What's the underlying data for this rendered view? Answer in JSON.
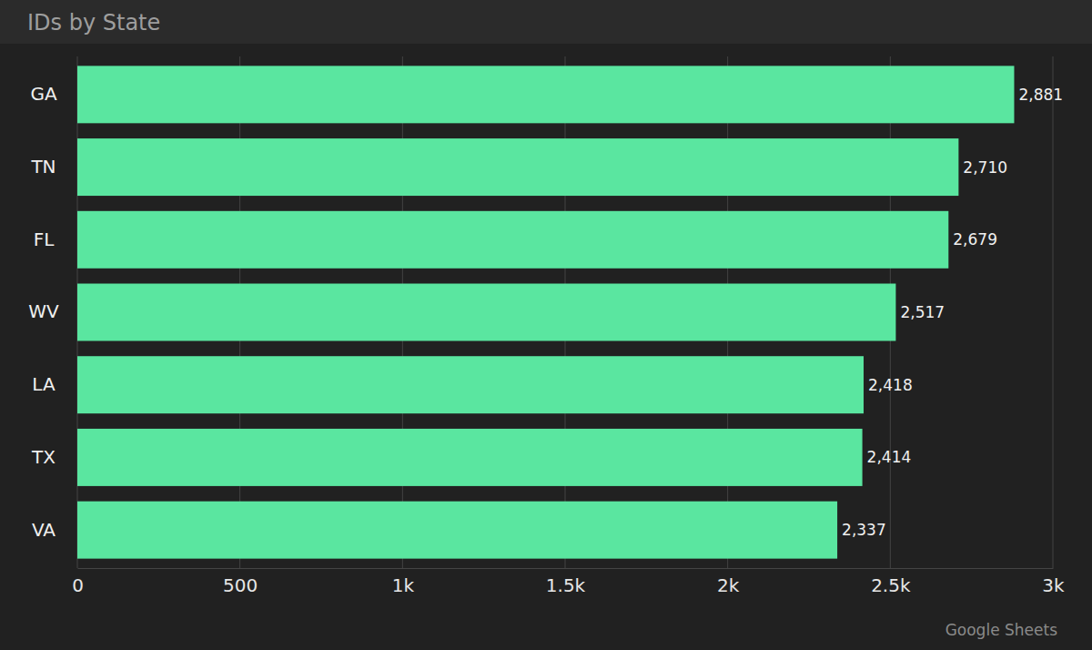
{
  "chart_data": {
    "type": "bar",
    "orientation": "horizontal",
    "title": "IDs by State",
    "source": "Google Sheets",
    "categories": [
      "GA",
      "TN",
      "FL",
      "WV",
      "LA",
      "TX",
      "VA"
    ],
    "values": [
      2881,
      2710,
      2679,
      2517,
      2418,
      2414,
      2337
    ],
    "value_labels": [
      "2,881",
      "2,710",
      "2,679",
      "2,517",
      "2,418",
      "2,414",
      "2,337"
    ],
    "color": "#5ae6a0",
    "xlim": [
      0,
      3000
    ],
    "xticks": [
      0,
      500,
      {
        "value": 1000,
        "label": "1k"
      },
      {
        "value": 1500,
        "label": "1.5k"
      },
      {
        "value": 2000,
        "label": "2k"
      },
      {
        "value": 2500,
        "label": "2.5k"
      },
      {
        "value": 3000,
        "label": "3k"
      }
    ],
    "grid": true,
    "data_labels": true
  }
}
